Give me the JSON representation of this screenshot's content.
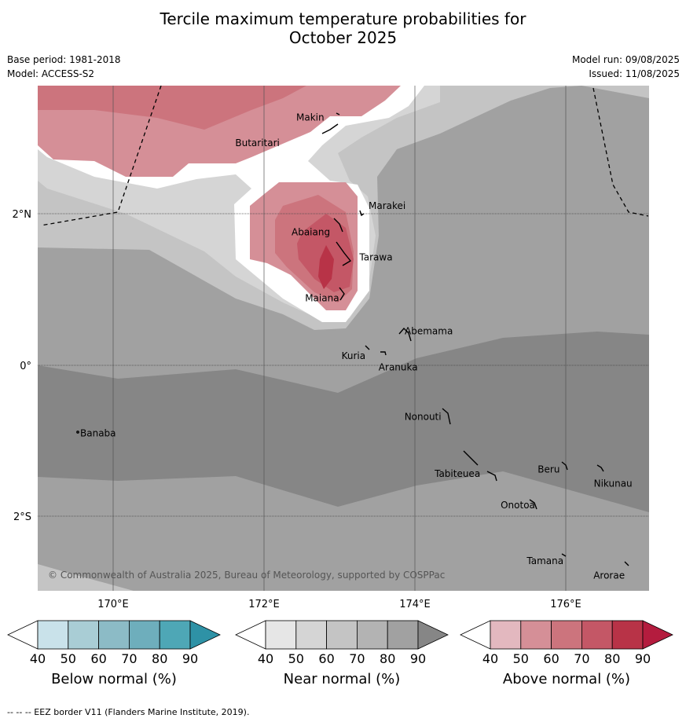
{
  "title_line1": "Tercile maximum temperature probabilities for",
  "title_line2": "October 2025",
  "meta": {
    "base_period": "Base period: 1981-2018",
    "model": "Model: ACCESS-S2",
    "model_run": "Model run: 09/08/2025",
    "issued": "Issued: 11/08/2025"
  },
  "map": {
    "lon_range": [
      169,
      177.1
    ],
    "lat_range": [
      -3,
      3.7
    ],
    "lon_ticks": [
      "170°E",
      "172°E",
      "174°E",
      "176°E"
    ],
    "lat_ticks": [
      "2°N",
      "0°",
      "2°S"
    ],
    "copyright": "© Commonwealth of Australia 2025, Bureau of Meteorology, supported by COSPPac",
    "places": [
      {
        "name": "Makin",
        "lon": 172.8,
        "lat": 3.3
      },
      {
        "name": "Butaritari",
        "lon": 172.2,
        "lat": 3.0
      },
      {
        "name": "Marakei",
        "lon": 173.3,
        "lat": 2.0
      },
      {
        "name": "Abaiang",
        "lon": 172.8,
        "lat": 1.8
      },
      {
        "name": "Tarawa",
        "lon": 173.2,
        "lat": 1.4
      },
      {
        "name": "Maiana",
        "lon": 173.0,
        "lat": 0.9
      },
      {
        "name": "Abemama",
        "lon": 173.8,
        "lat": 0.4
      },
      {
        "name": "Kuria",
        "lon": 173.4,
        "lat": 0.2
      },
      {
        "name": "Aranuka",
        "lon": 173.6,
        "lat": 0.15
      },
      {
        "name": "Nonouti",
        "lon": 174.4,
        "lat": -0.65
      },
      {
        "name": "Banaba",
        "lon": 169.5,
        "lat": -0.85
      },
      {
        "name": "Tabiteuea",
        "lon": 174.8,
        "lat": -1.3
      },
      {
        "name": "Beru",
        "lon": 176.0,
        "lat": -1.35
      },
      {
        "name": "Nikunau",
        "lon": 176.45,
        "lat": -1.35
      },
      {
        "name": "Onotoa",
        "lon": 175.55,
        "lat": -1.8
      },
      {
        "name": "Tamana",
        "lon": 175.98,
        "lat": -2.5
      },
      {
        "name": "Arorae",
        "lon": 176.8,
        "lat": -2.65
      }
    ]
  },
  "colorbars": [
    {
      "label": "Below normal (%)",
      "ticks": [
        "40",
        "50",
        "60",
        "70",
        "80",
        "90"
      ],
      "colors": [
        "#ffffff",
        "#c9e2ea",
        "#a9cdd5",
        "#8cbbc6",
        "#6eaebc",
        "#4ea7b6",
        "#2e92a6"
      ]
    },
    {
      "label": "Near normal (%)",
      "ticks": [
        "40",
        "50",
        "60",
        "70",
        "80",
        "90"
      ],
      "colors": [
        "#ffffff",
        "#e6e6e6",
        "#d5d5d5",
        "#c4c4c4",
        "#b3b3b3",
        "#a1a1a1",
        "#868686"
      ]
    },
    {
      "label": "Above normal (%)",
      "ticks": [
        "40",
        "50",
        "60",
        "70",
        "80",
        "90"
      ],
      "colors": [
        "#ffffff",
        "#e3b8bf",
        "#d58f97",
        "#cc747d",
        "#c45766",
        "#b83347",
        "#b41c3e"
      ]
    }
  ],
  "footer": "--  --  -- EEZ border V11 (Flanders Marine Institute, 2019)."
}
